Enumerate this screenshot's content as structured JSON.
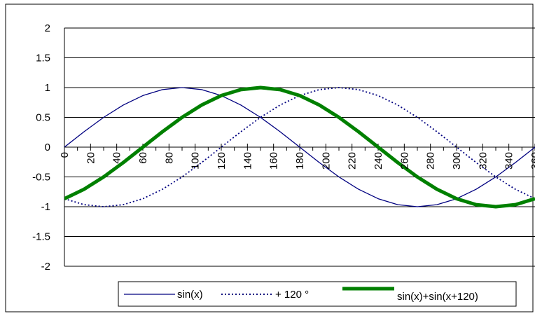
{
  "chart_data": {
    "type": "line",
    "title": "",
    "xlabel": "",
    "ylabel": "",
    "xlim": [
      0,
      360
    ],
    "ylim": [
      -2,
      2
    ],
    "grid": true,
    "legend_position": "bottom-right",
    "y_ticks": [
      "2",
      "1.5",
      "1",
      "0.5",
      "0",
      "-0.5",
      "-1",
      "-1.5",
      "-2"
    ],
    "y_tick_values": [
      2,
      1.5,
      1,
      0.5,
      0,
      -0.5,
      -1,
      -1.5,
      -2
    ],
    "x_ticks": [
      "0",
      "20",
      "40",
      "60",
      "80",
      "100",
      "120",
      "140",
      "160",
      "180",
      "200",
      "220",
      "240",
      "260",
      "280",
      "300",
      "320",
      "340",
      "360"
    ],
    "x_tick_values": [
      0,
      20,
      40,
      60,
      80,
      100,
      120,
      140,
      160,
      180,
      200,
      220,
      240,
      260,
      280,
      300,
      320,
      340,
      360
    ],
    "x": [
      0,
      15,
      30,
      45,
      60,
      75,
      90,
      105,
      120,
      135,
      150,
      165,
      180,
      195,
      210,
      225,
      240,
      255,
      270,
      285,
      300,
      315,
      330,
      345,
      360
    ],
    "series": [
      {
        "name": "sin(x)",
        "color": "#000080",
        "style": "solid",
        "values": [
          0,
          0.259,
          0.5,
          0.707,
          0.866,
          0.966,
          1,
          0.966,
          0.866,
          0.707,
          0.5,
          0.259,
          0,
          -0.259,
          -0.5,
          -0.707,
          -0.866,
          -0.966,
          -1,
          -0.966,
          -0.866,
          -0.707,
          -0.5,
          -0.259,
          0
        ]
      },
      {
        "name": "+ 120 °",
        "color": "#000080",
        "style": "dotted",
        "values": [
          -0.866,
          -0.966,
          -1,
          -0.966,
          -0.866,
          -0.707,
          -0.5,
          -0.259,
          0,
          0.259,
          0.5,
          0.707,
          0.866,
          0.966,
          1,
          0.966,
          0.866,
          0.707,
          0.5,
          0.259,
          0,
          -0.259,
          -0.5,
          -0.707,
          -0.866
        ]
      },
      {
        "name": "sin(x)+sin(x+120)",
        "color": "#008000",
        "style": "thick",
        "values": [
          -0.866,
          -0.707,
          -0.5,
          -0.259,
          0,
          0.259,
          0.5,
          0.707,
          0.866,
          0.966,
          1,
          0.966,
          0.866,
          0.707,
          0.5,
          0.259,
          0,
          -0.259,
          -0.5,
          -0.707,
          -0.866,
          -0.966,
          -1,
          -0.966,
          -0.866
        ]
      }
    ]
  }
}
